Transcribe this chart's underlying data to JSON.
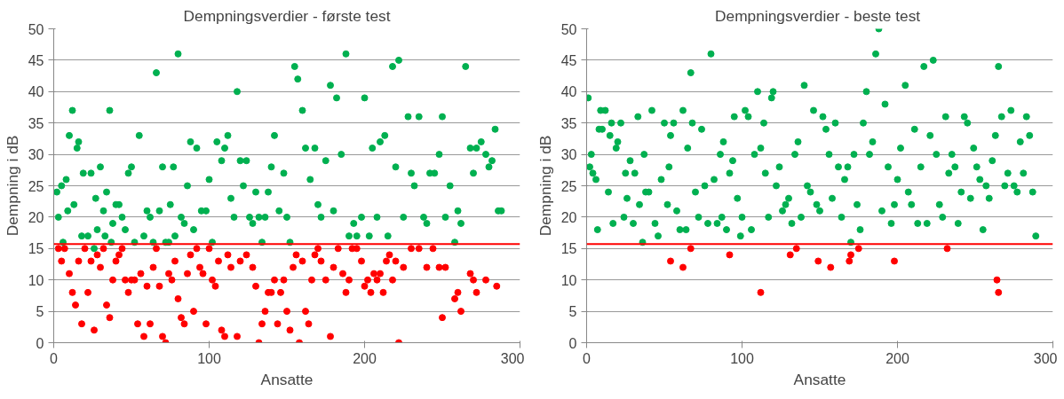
{
  "chart_data": [
    {
      "type": "scatter",
      "title": "Dempningsverdier - første test",
      "xlabel": "Ansatte",
      "ylabel": "Dempning i dB",
      "xlim": [
        0,
        300
      ],
      "xticks": [
        0,
        100,
        200,
        300
      ],
      "ylim": [
        0,
        50
      ],
      "yticks": [
        0,
        5,
        10,
        15,
        20,
        25,
        30,
        35,
        40,
        45,
        50
      ],
      "grid": "y",
      "marker": "circle",
      "ref_lines": [
        {
          "axis": "y",
          "value": 15.7,
          "color": "#ff0000"
        }
      ],
      "series": [
        {
          "color": "#00b050",
          "x": [
            2,
            3,
            5,
            6,
            8,
            9,
            10,
            12,
            13,
            15,
            16,
            18,
            19,
            22,
            24,
            26,
            27,
            28,
            30,
            32,
            33,
            34,
            36,
            37,
            38,
            40,
            42,
            44,
            46,
            48,
            50,
            52,
            55,
            58,
            60,
            62,
            64,
            66,
            68,
            70,
            72,
            74,
            75,
            77,
            78,
            80,
            82,
            84,
            86,
            88,
            90,
            92,
            95,
            98,
            100,
            102,
            105,
            108,
            110,
            112,
            114,
            116,
            118,
            120,
            122,
            124,
            126,
            128,
            130,
            132,
            134,
            136,
            138,
            140,
            142,
            145,
            148,
            150,
            152,
            155,
            157,
            160,
            162,
            165,
            168,
            170,
            172,
            175,
            178,
            180,
            182,
            185,
            188,
            190,
            193,
            195,
            198,
            200,
            203,
            205,
            208,
            210,
            213,
            215,
            218,
            220,
            222,
            225,
            228,
            230,
            232,
            235,
            238,
            240,
            242,
            245,
            248,
            250,
            252,
            255,
            258,
            260,
            262,
            265,
            268,
            270,
            272,
            275,
            278,
            280,
            282,
            284,
            286,
            288
          ],
          "values": [
            24,
            20,
            25,
            16,
            26,
            21,
            33,
            37,
            22,
            31,
            32,
            17,
            27,
            17,
            27,
            15,
            23,
            18,
            28,
            21,
            17,
            24,
            37,
            16,
            19,
            22,
            22,
            20,
            18,
            27,
            28,
            16,
            33,
            17,
            21,
            20,
            16,
            43,
            21,
            28,
            16,
            16,
            22,
            28,
            17,
            46,
            20,
            19,
            25,
            32,
            18,
            31,
            21,
            21,
            26,
            16,
            32,
            29,
            31,
            33,
            23,
            20,
            40,
            29,
            25,
            29,
            20,
            19,
            24,
            20,
            16,
            20,
            24,
            28,
            33,
            21,
            27,
            20,
            16,
            44,
            42,
            37,
            31,
            26,
            31,
            22,
            20,
            29,
            41,
            21,
            39,
            30,
            46,
            17,
            19,
            17,
            20,
            39,
            17,
            31,
            20,
            32,
            33,
            17,
            44,
            28,
            45,
            20,
            36,
            27,
            25,
            36,
            20,
            19,
            27,
            27,
            30,
            36,
            20,
            25,
            16,
            21,
            19,
            44,
            31,
            27,
            31,
            32,
            30,
            28,
            29,
            34,
            21,
            21
          ]
        },
        {
          "color": "#ff0000",
          "x": [
            3,
            5,
            7,
            10,
            12,
            14,
            16,
            18,
            20,
            22,
            24,
            26,
            28,
            30,
            32,
            34,
            36,
            38,
            40,
            42,
            44,
            46,
            48,
            50,
            52,
            54,
            56,
            58,
            60,
            62,
            64,
            66,
            68,
            70,
            72,
            74,
            76,
            78,
            80,
            82,
            84,
            86,
            88,
            90,
            92,
            94,
            96,
            98,
            100,
            102,
            104,
            106,
            108,
            110,
            112,
            114,
            118,
            120,
            124,
            128,
            130,
            132,
            134,
            136,
            138,
            140,
            142,
            144,
            146,
            148,
            150,
            152,
            154,
            156,
            158,
            160,
            162,
            164,
            166,
            168,
            170,
            172,
            175,
            178,
            180,
            183,
            186,
            188,
            190,
            192,
            195,
            198,
            200,
            202,
            204,
            206,
            208,
            210,
            212,
            214,
            216,
            218,
            220,
            222,
            225,
            230,
            235,
            240,
            244,
            248,
            250,
            252,
            258,
            260,
            262,
            268,
            270,
            272,
            278,
            285
          ],
          "values": [
            15,
            13,
            15,
            11,
            8,
            6,
            13,
            3,
            15,
            8,
            13,
            2,
            14,
            12,
            15,
            6,
            4,
            10,
            13,
            14,
            15,
            10,
            8,
            10,
            10,
            3,
            11,
            1,
            9,
            3,
            12,
            15,
            9,
            1,
            0,
            11,
            10,
            13,
            7,
            4,
            3,
            11,
            14,
            5,
            15,
            12,
            11,
            3,
            15,
            10,
            9,
            13,
            2,
            1,
            14,
            12,
            1,
            13,
            14,
            12,
            9,
            0,
            3,
            5,
            8,
            8,
            10,
            3,
            8,
            10,
            5,
            2,
            12,
            14,
            0,
            13,
            5,
            3,
            10,
            14,
            15,
            13,
            10,
            1,
            12,
            15,
            11,
            8,
            10,
            15,
            15,
            13,
            9,
            10,
            8,
            11,
            10,
            11,
            8,
            13,
            14,
            10,
            13,
            0,
            12,
            15,
            15,
            12,
            15,
            12,
            4,
            12,
            7,
            8,
            5,
            11,
            10,
            8,
            10,
            9
          ]
        }
      ]
    },
    {
      "type": "scatter",
      "title": "Dempningsverdier -  beste test",
      "xlabel": "Ansatte",
      "ylabel": "Dempning i dB",
      "xlim": [
        0,
        300
      ],
      "xticks": [
        0,
        100,
        200,
        300
      ],
      "ylim": [
        0,
        50
      ],
      "yticks": [
        0,
        5,
        10,
        15,
        20,
        25,
        30,
        35,
        40,
        45,
        50
      ],
      "grid": "y",
      "marker": "circle",
      "ref_lines": [
        {
          "axis": "y",
          "value": 15.7,
          "color": "#ff0000"
        }
      ],
      "series": [
        {
          "color": "#00b050",
          "x": [
            1,
            2,
            3,
            4,
            6,
            7,
            8,
            9,
            10,
            12,
            14,
            15,
            16,
            17,
            19,
            20,
            22,
            24,
            25,
            26,
            28,
            30,
            31,
            33,
            34,
            36,
            37,
            38,
            40,
            42,
            44,
            46,
            48,
            50,
            52,
            53,
            54,
            56,
            58,
            60,
            62,
            64,
            65,
            67,
            68,
            70,
            72,
            74,
            76,
            78,
            80,
            82,
            84,
            86,
            87,
            88,
            90,
            92,
            94,
            95,
            97,
            99,
            100,
            102,
            104,
            106,
            108,
            110,
            112,
            114,
            115,
            117,
            119,
            120,
            122,
            124,
            126,
            128,
            130,
            132,
            134,
            136,
            138,
            140,
            142,
            144,
            146,
            148,
            150,
            152,
            154,
            156,
            158,
            160,
            162,
            164,
            166,
            168,
            170,
            172,
            174,
            176,
            178,
            180,
            182,
            184,
            186,
            188,
            190,
            192,
            194,
            196,
            198,
            200,
            202,
            205,
            207,
            209,
            211,
            213,
            215,
            217,
            219,
            221,
            223,
            225,
            227,
            229,
            231,
            233,
            235,
            237,
            239,
            241,
            243,
            245,
            247,
            249,
            251,
            253,
            255,
            257,
            259,
            261,
            263,
            265,
            267,
            269,
            271,
            273,
            275,
            277,
            279,
            281,
            283,
            285,
            287,
            289
          ],
          "values": [
            39,
            28,
            30,
            27,
            26,
            18,
            34,
            37,
            34,
            37,
            24,
            33,
            35,
            19,
            31,
            32,
            35,
            20,
            27,
            23,
            29,
            19,
            27,
            36,
            22,
            16,
            30,
            24,
            24,
            37,
            19,
            17,
            26,
            35,
            22,
            28,
            33,
            35,
            21,
            18,
            37,
            18,
            31,
            43,
            35,
            24,
            20,
            34,
            25,
            19,
            46,
            26,
            19,
            30,
            20,
            32,
            18,
            27,
            29,
            36,
            23,
            17,
            20,
            37,
            36,
            18,
            30,
            40,
            31,
            35,
            27,
            20,
            39,
            40,
            25,
            28,
            21,
            22,
            23,
            19,
            30,
            32,
            20,
            41,
            25,
            24,
            37,
            22,
            21,
            36,
            34,
            30,
            23,
            35,
            28,
            20,
            26,
            28,
            16,
            30,
            22,
            18,
            35,
            40,
            30,
            32,
            46,
            50,
            21,
            38,
            28,
            19,
            22,
            26,
            31,
            41,
            24,
            22,
            34,
            19,
            28,
            44,
            19,
            33,
            45,
            30,
            22,
            20,
            36,
            27,
            30,
            28,
            19,
            24,
            36,
            35,
            23,
            31,
            28,
            26,
            18,
            25,
            23,
            29,
            33,
            44,
            36,
            25,
            27,
            37,
            25,
            24,
            32,
            27,
            36,
            33,
            24,
            17
          ]
        },
        {
          "color": "#ff0000",
          "x": [
            54,
            62,
            67,
            92,
            112,
            131,
            135,
            149,
            157,
            169,
            170,
            175,
            198,
            232,
            264,
            265
          ],
          "values": [
            13,
            12,
            15,
            14,
            8,
            14,
            15,
            13,
            12,
            13,
            14,
            15,
            13,
            15,
            10,
            8
          ]
        }
      ]
    }
  ]
}
